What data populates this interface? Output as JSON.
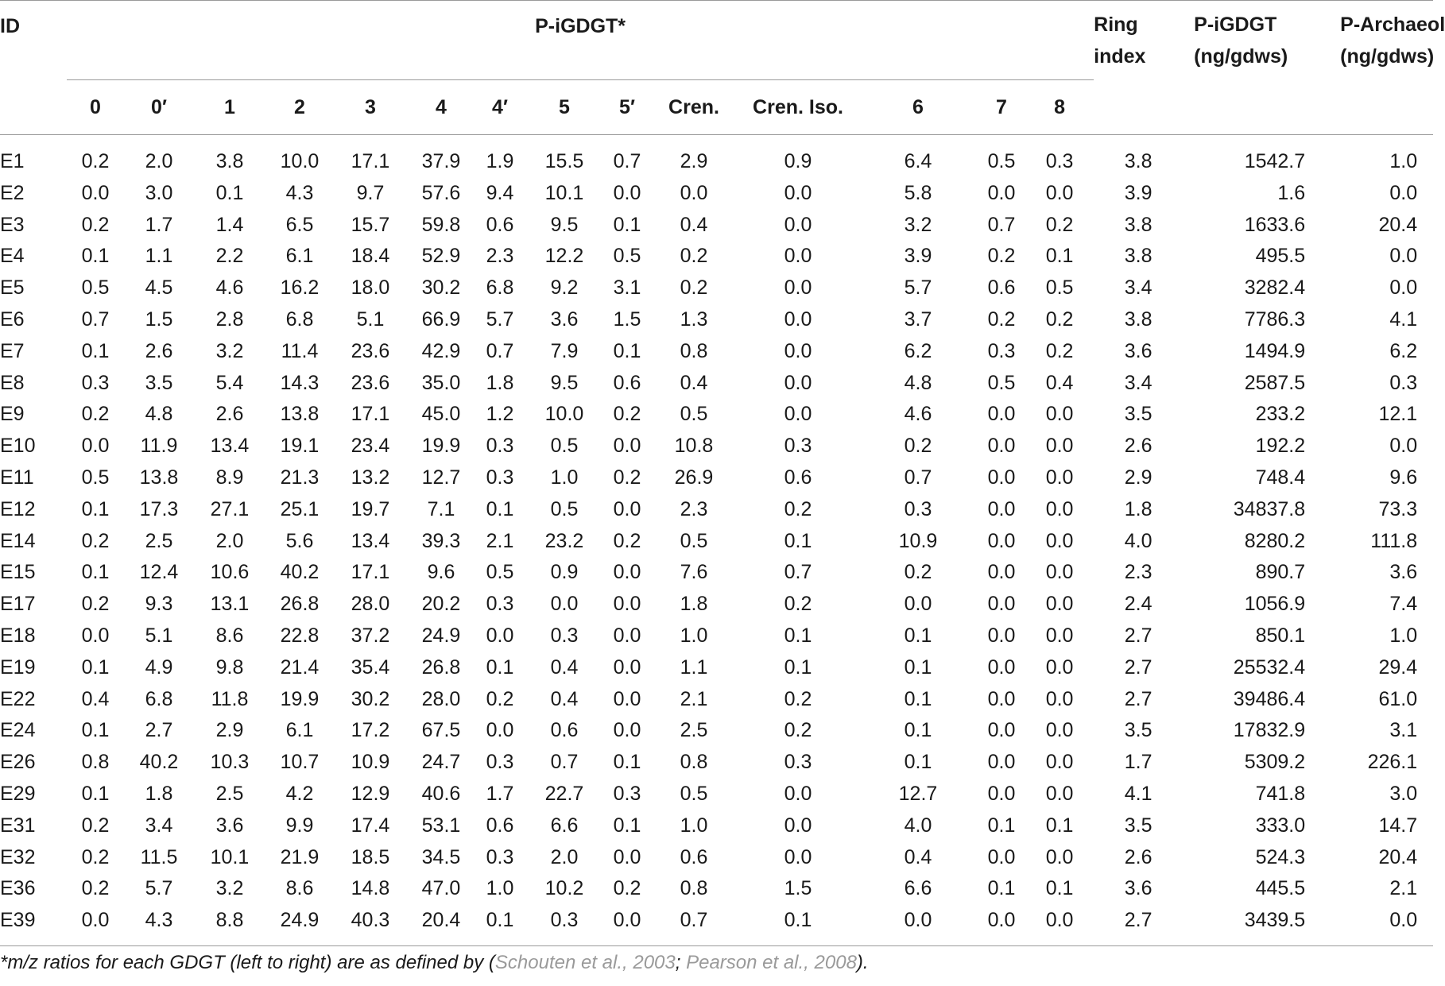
{
  "header": {
    "id": "ID",
    "group": "P-iGDGT*",
    "ring_index": [
      "Ring",
      "index"
    ],
    "p_igdgt": [
      "P-iGDGT",
      "(ng/gdws)"
    ],
    "p_archaeol": [
      "P-Archaeol",
      "(ng/gdws)"
    ],
    "sub_columns": [
      "0",
      "0′",
      "1",
      "2",
      "3",
      "4",
      "4′",
      "5",
      "5′",
      "Cren.",
      "Cren. Iso.",
      "6",
      "7",
      "8"
    ]
  },
  "rows": [
    [
      "E1",
      "0.2",
      "2.0",
      "3.8",
      "10.0",
      "17.1",
      "37.9",
      "1.9",
      "15.5",
      "0.7",
      "2.9",
      "0.9",
      "6.4",
      "0.5",
      "0.3",
      "3.8",
      "1542.7",
      "1.0"
    ],
    [
      "E2",
      "0.0",
      "3.0",
      "0.1",
      "4.3",
      "9.7",
      "57.6",
      "9.4",
      "10.1",
      "0.0",
      "0.0",
      "0.0",
      "5.8",
      "0.0",
      "0.0",
      "3.9",
      "1.6",
      "0.0"
    ],
    [
      "E3",
      "0.2",
      "1.7",
      "1.4",
      "6.5",
      "15.7",
      "59.8",
      "0.6",
      "9.5",
      "0.1",
      "0.4",
      "0.0",
      "3.2",
      "0.7",
      "0.2",
      "3.8",
      "1633.6",
      "20.4"
    ],
    [
      "E4",
      "0.1",
      "1.1",
      "2.2",
      "6.1",
      "18.4",
      "52.9",
      "2.3",
      "12.2",
      "0.5",
      "0.2",
      "0.0",
      "3.9",
      "0.2",
      "0.1",
      "3.8",
      "495.5",
      "0.0"
    ],
    [
      "E5",
      "0.5",
      "4.5",
      "4.6",
      "16.2",
      "18.0",
      "30.2",
      "6.8",
      "9.2",
      "3.1",
      "0.2",
      "0.0",
      "5.7",
      "0.6",
      "0.5",
      "3.4",
      "3282.4",
      "0.0"
    ],
    [
      "E6",
      "0.7",
      "1.5",
      "2.8",
      "6.8",
      "5.1",
      "66.9",
      "5.7",
      "3.6",
      "1.5",
      "1.3",
      "0.0",
      "3.7",
      "0.2",
      "0.2",
      "3.8",
      "7786.3",
      "4.1"
    ],
    [
      "E7",
      "0.1",
      "2.6",
      "3.2",
      "11.4",
      "23.6",
      "42.9",
      "0.7",
      "7.9",
      "0.1",
      "0.8",
      "0.0",
      "6.2",
      "0.3",
      "0.2",
      "3.6",
      "1494.9",
      "6.2"
    ],
    [
      "E8",
      "0.3",
      "3.5",
      "5.4",
      "14.3",
      "23.6",
      "35.0",
      "1.8",
      "9.5",
      "0.6",
      "0.4",
      "0.0",
      "4.8",
      "0.5",
      "0.4",
      "3.4",
      "2587.5",
      "0.3"
    ],
    [
      "E9",
      "0.2",
      "4.8",
      "2.6",
      "13.8",
      "17.1",
      "45.0",
      "1.2",
      "10.0",
      "0.2",
      "0.5",
      "0.0",
      "4.6",
      "0.0",
      "0.0",
      "3.5",
      "233.2",
      "12.1"
    ],
    [
      "E10",
      "0.0",
      "11.9",
      "13.4",
      "19.1",
      "23.4",
      "19.9",
      "0.3",
      "0.5",
      "0.0",
      "10.8",
      "0.3",
      "0.2",
      "0.0",
      "0.0",
      "2.6",
      "192.2",
      "0.0"
    ],
    [
      "E11",
      "0.5",
      "13.8",
      "8.9",
      "21.3",
      "13.2",
      "12.7",
      "0.3",
      "1.0",
      "0.2",
      "26.9",
      "0.6",
      "0.7",
      "0.0",
      "0.0",
      "2.9",
      "748.4",
      "9.6"
    ],
    [
      "E12",
      "0.1",
      "17.3",
      "27.1",
      "25.1",
      "19.7",
      "7.1",
      "0.1",
      "0.5",
      "0.0",
      "2.3",
      "0.2",
      "0.3",
      "0.0",
      "0.0",
      "1.8",
      "34837.8",
      "73.3"
    ],
    [
      "E14",
      "0.2",
      "2.5",
      "2.0",
      "5.6",
      "13.4",
      "39.3",
      "2.1",
      "23.2",
      "0.2",
      "0.5",
      "0.1",
      "10.9",
      "0.0",
      "0.0",
      "4.0",
      "8280.2",
      "111.8"
    ],
    [
      "E15",
      "0.1",
      "12.4",
      "10.6",
      "40.2",
      "17.1",
      "9.6",
      "0.5",
      "0.9",
      "0.0",
      "7.6",
      "0.7",
      "0.2",
      "0.0",
      "0.0",
      "2.3",
      "890.7",
      "3.6"
    ],
    [
      "E17",
      "0.2",
      "9.3",
      "13.1",
      "26.8",
      "28.0",
      "20.2",
      "0.3",
      "0.0",
      "0.0",
      "1.8",
      "0.2",
      "0.0",
      "0.0",
      "0.0",
      "2.4",
      "1056.9",
      "7.4"
    ],
    [
      "E18",
      "0.0",
      "5.1",
      "8.6",
      "22.8",
      "37.2",
      "24.9",
      "0.0",
      "0.3",
      "0.0",
      "1.0",
      "0.1",
      "0.1",
      "0.0",
      "0.0",
      "2.7",
      "850.1",
      "1.0"
    ],
    [
      "E19",
      "0.1",
      "4.9",
      "9.8",
      "21.4",
      "35.4",
      "26.8",
      "0.1",
      "0.4",
      "0.0",
      "1.1",
      "0.1",
      "0.1",
      "0.0",
      "0.0",
      "2.7",
      "25532.4",
      "29.4"
    ],
    [
      "E22",
      "0.4",
      "6.8",
      "11.8",
      "19.9",
      "30.2",
      "28.0",
      "0.2",
      "0.4",
      "0.0",
      "2.1",
      "0.2",
      "0.1",
      "0.0",
      "0.0",
      "2.7",
      "39486.4",
      "61.0"
    ],
    [
      "E24",
      "0.1",
      "2.7",
      "2.9",
      "6.1",
      "17.2",
      "67.5",
      "0.0",
      "0.6",
      "0.0",
      "2.5",
      "0.2",
      "0.1",
      "0.0",
      "0.0",
      "3.5",
      "17832.9",
      "3.1"
    ],
    [
      "E26",
      "0.8",
      "40.2",
      "10.3",
      "10.7",
      "10.9",
      "24.7",
      "0.3",
      "0.7",
      "0.1",
      "0.8",
      "0.3",
      "0.1",
      "0.0",
      "0.0",
      "1.7",
      "5309.2",
      "226.1"
    ],
    [
      "E29",
      "0.1",
      "1.8",
      "2.5",
      "4.2",
      "12.9",
      "40.6",
      "1.7",
      "22.7",
      "0.3",
      "0.5",
      "0.0",
      "12.7",
      "0.0",
      "0.0",
      "4.1",
      "741.8",
      "3.0"
    ],
    [
      "E31",
      "0.2",
      "3.4",
      "3.6",
      "9.9",
      "17.4",
      "53.1",
      "0.6",
      "6.6",
      "0.1",
      "1.0",
      "0.0",
      "4.0",
      "0.1",
      "0.1",
      "3.5",
      "333.0",
      "14.7"
    ],
    [
      "E32",
      "0.2",
      "11.5",
      "10.1",
      "21.9",
      "18.5",
      "34.5",
      "0.3",
      "2.0",
      "0.0",
      "0.6",
      "0.0",
      "0.4",
      "0.0",
      "0.0",
      "2.6",
      "524.3",
      "20.4"
    ],
    [
      "E36",
      "0.2",
      "5.7",
      "3.2",
      "8.6",
      "14.8",
      "47.0",
      "1.0",
      "10.2",
      "0.2",
      "0.8",
      "1.5",
      "6.6",
      "0.1",
      "0.1",
      "3.6",
      "445.5",
      "2.1"
    ],
    [
      "E39",
      "0.0",
      "4.3",
      "8.8",
      "24.9",
      "40.3",
      "20.4",
      "0.1",
      "0.3",
      "0.0",
      "0.7",
      "0.1",
      "0.0",
      "0.0",
      "0.0",
      "2.7",
      "3439.5",
      "0.0"
    ]
  ],
  "footnote": {
    "pre": "*m/z ratios for each GDGT (left to right) are as defined by (",
    "ref1": "Schouten et al., 2003",
    "sep": "; ",
    "ref2": "Pearson et al., 2008",
    "post": ")."
  }
}
